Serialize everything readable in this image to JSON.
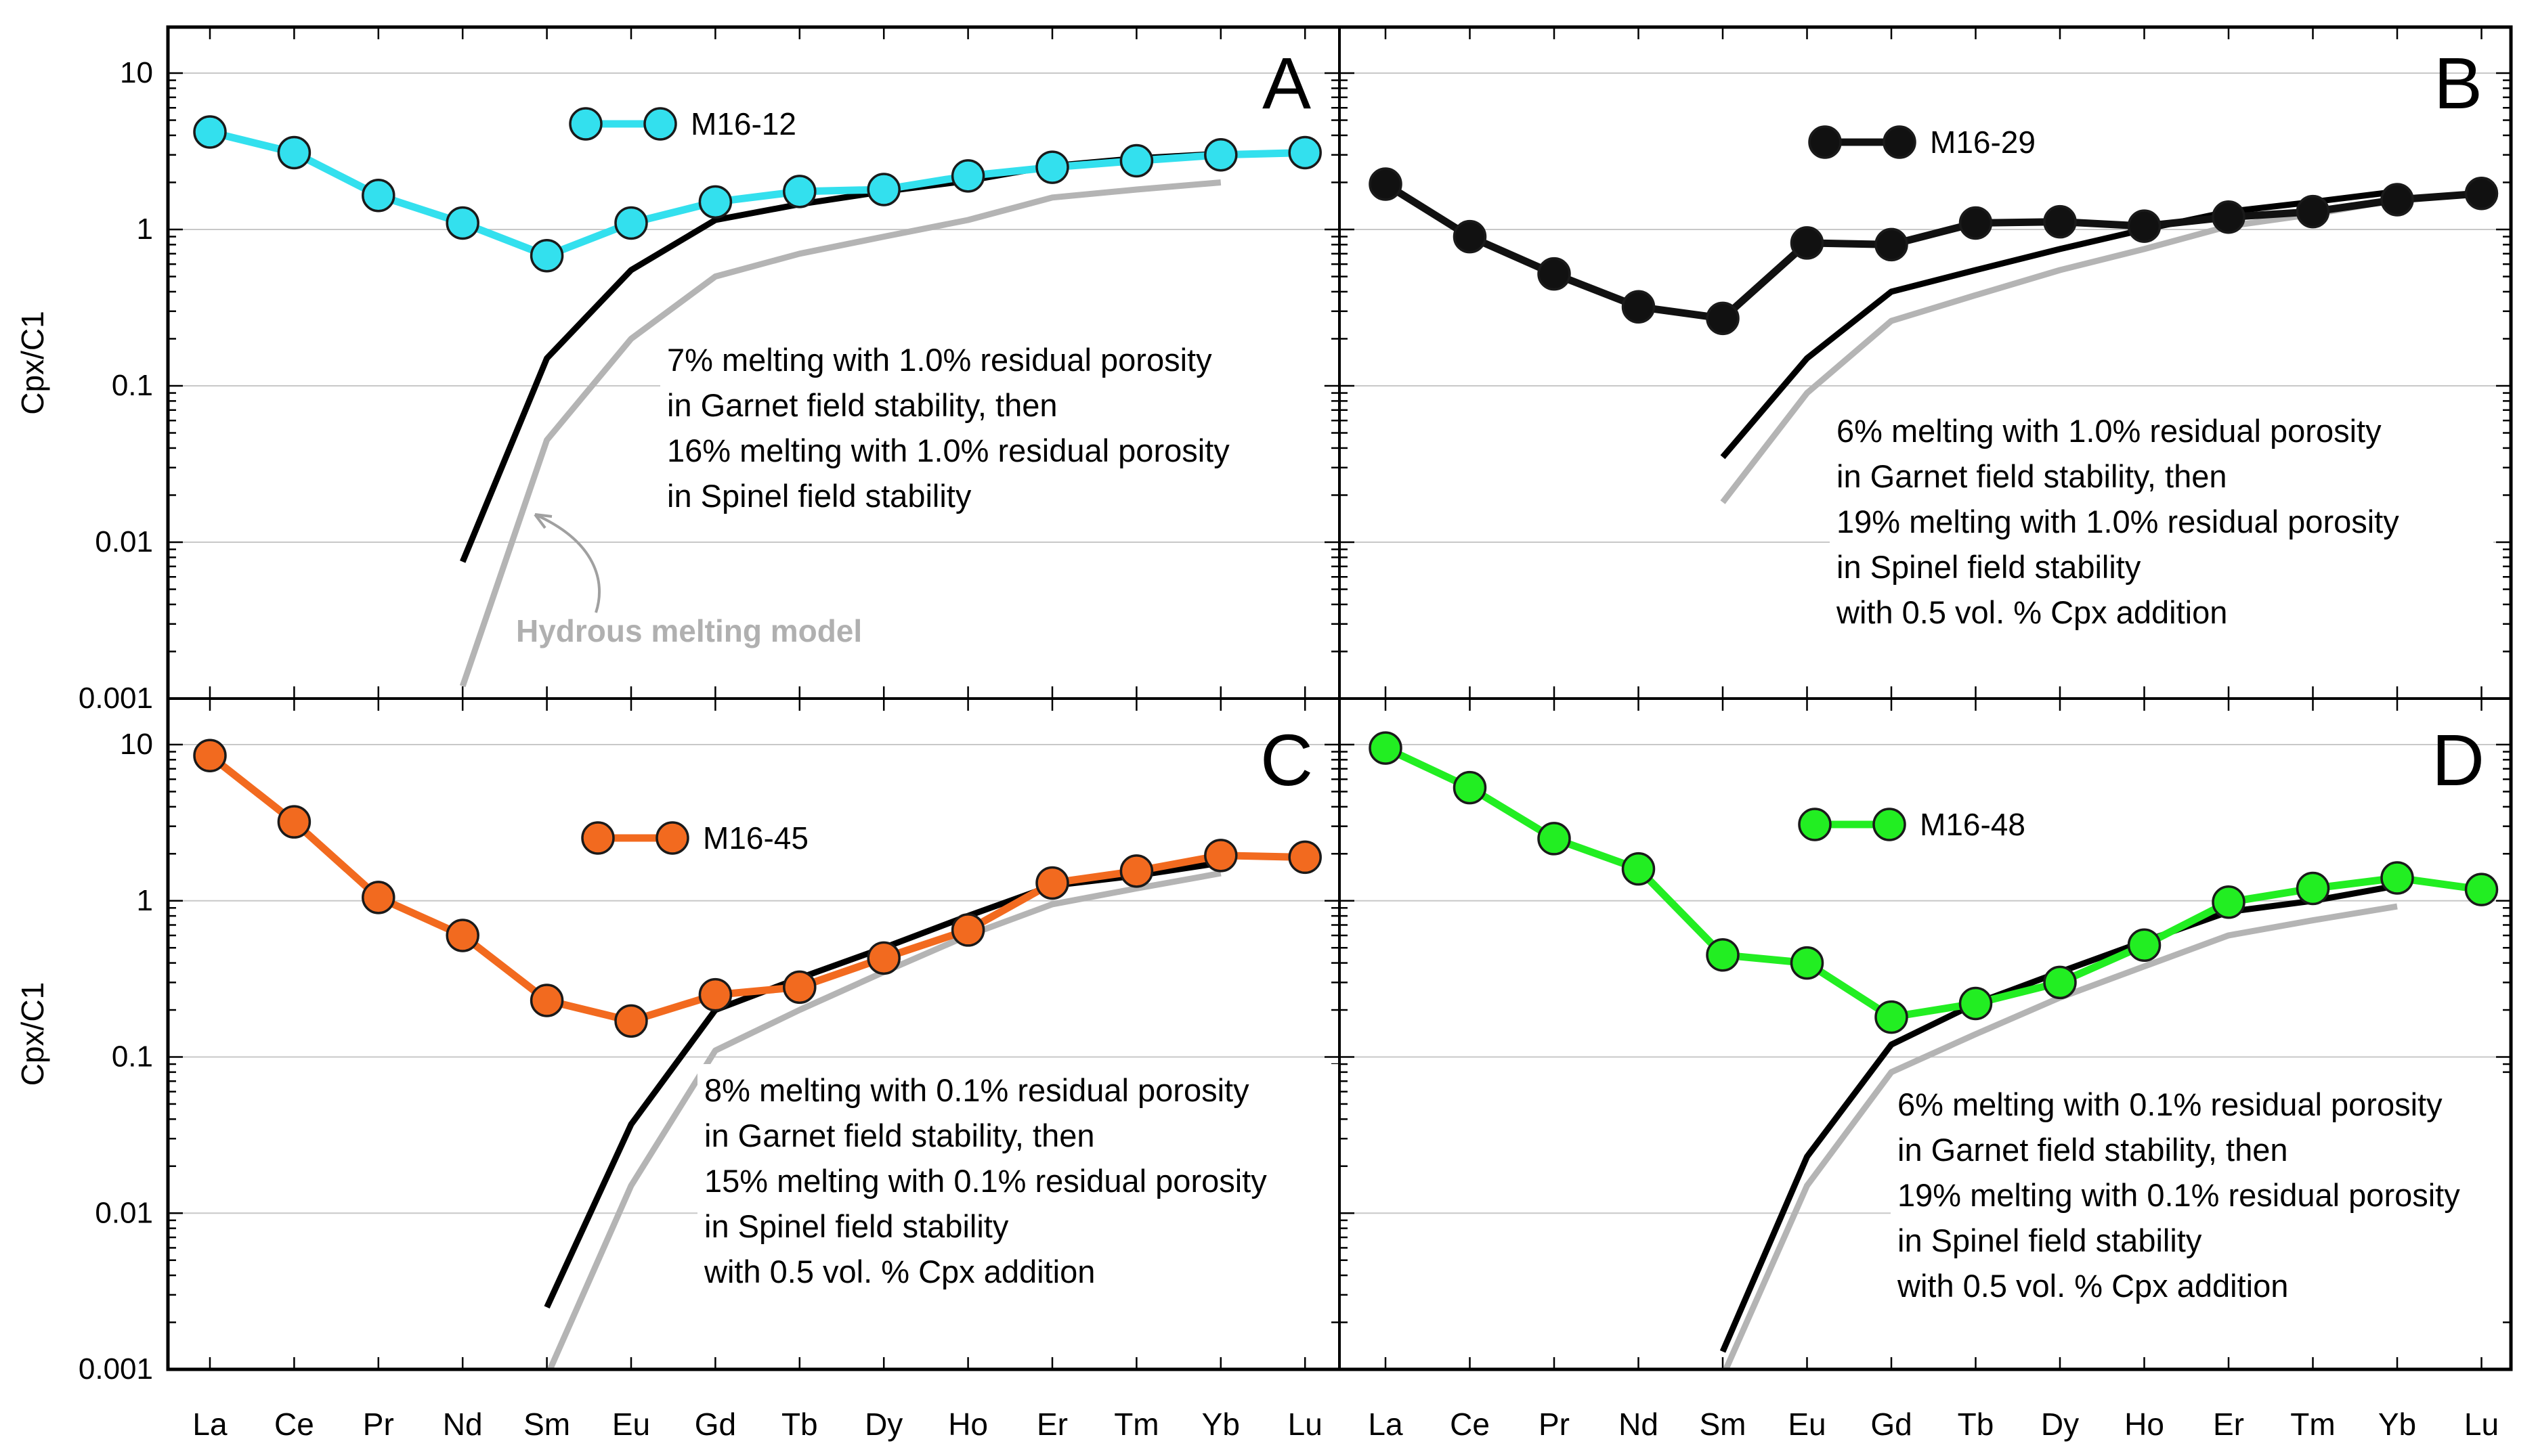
{
  "chart_data": [
    {
      "panel_label": "A",
      "type": "line",
      "title": "",
      "xlabel": "",
      "ylabel": "Cpx/C1",
      "yscale": "log",
      "ylim": [
        0.001,
        20
      ],
      "grid": true,
      "legend_position": "top-center",
      "categories": [
        "La",
        "Ce",
        "Pr",
        "Nd",
        "Sm",
        "Eu",
        "Gd",
        "Tb",
        "Dy",
        "Ho",
        "Er",
        "Tm",
        "Yb",
        "Lu"
      ],
      "series": [
        {
          "name": "M16-12",
          "kind": "sample",
          "color": "#33e0ee",
          "values": [
            4.2,
            3.1,
            1.65,
            1.1,
            0.68,
            1.1,
            1.5,
            1.75,
            1.8,
            2.2,
            2.5,
            2.75,
            3.0,
            3.1
          ]
        },
        {
          "name": "Melting model",
          "kind": "model",
          "color": "#000000",
          "values": [
            null,
            null,
            null,
            0.0075,
            0.15,
            0.55,
            1.15,
            1.45,
            1.75,
            2.05,
            2.55,
            2.85,
            3.05,
            null
          ]
        },
        {
          "name": "Hydrous melting model",
          "kind": "model",
          "color": "#b4b4b4",
          "values": [
            null,
            null,
            null,
            0.0012,
            0.045,
            0.2,
            0.5,
            0.7,
            0.9,
            1.15,
            1.6,
            1.8,
            2.0,
            null
          ]
        }
      ],
      "annotations": [
        "7% melting with 1.0% residual porosity",
        "in Garnet field stability, then",
        "16% melting with 1.0% residual porosity",
        "in Spinel field stability"
      ],
      "callout": "Hydrous melting model"
    },
    {
      "panel_label": "B",
      "type": "line",
      "title": "",
      "xlabel": "",
      "ylabel": "",
      "yscale": "log",
      "ylim": [
        0.001,
        20
      ],
      "grid": true,
      "legend_position": "top-center",
      "categories": [
        "La",
        "Ce",
        "Pr",
        "Nd",
        "Sm",
        "Eu",
        "Gd",
        "Tb",
        "Dy",
        "Ho",
        "Er",
        "Tm",
        "Yb",
        "Lu"
      ],
      "series": [
        {
          "name": "M16-29",
          "kind": "sample",
          "color": "#111111",
          "values": [
            1.95,
            0.9,
            0.52,
            0.32,
            0.27,
            0.82,
            0.8,
            1.1,
            1.12,
            1.05,
            1.2,
            1.3,
            1.55,
            1.7
          ]
        },
        {
          "name": "Melting model",
          "kind": "model",
          "color": "#000000",
          "values": [
            null,
            null,
            null,
            null,
            0.035,
            0.15,
            0.4,
            0.55,
            0.75,
            1.0,
            1.3,
            1.5,
            1.75,
            null
          ]
        },
        {
          "name": "Hydrous melting model",
          "kind": "model",
          "color": "#b4b4b4",
          "values": [
            null,
            null,
            null,
            null,
            0.018,
            0.09,
            0.26,
            0.38,
            0.55,
            0.75,
            1.05,
            1.25,
            1.55,
            null
          ]
        }
      ],
      "annotations": [
        "6% melting with 1.0% residual porosity",
        "in Garnet field stability, then",
        "19% melting with 1.0% residual porosity",
        "in Spinel field stability",
        "with 0.5 vol. % Cpx addition"
      ]
    },
    {
      "panel_label": "C",
      "type": "line",
      "title": "",
      "xlabel": "",
      "ylabel": "Cpx/C1",
      "yscale": "log",
      "ylim": [
        0.001,
        20
      ],
      "grid": true,
      "legend_position": "top-center",
      "categories": [
        "La",
        "Ce",
        "Pr",
        "Nd",
        "Sm",
        "Eu",
        "Gd",
        "Tb",
        "Dy",
        "Ho",
        "Er",
        "Tm",
        "Yb",
        "Lu"
      ],
      "series": [
        {
          "name": "M16-45",
          "kind": "sample",
          "color": "#f26a1f",
          "values": [
            8.5,
            3.2,
            1.05,
            0.6,
            0.23,
            0.17,
            0.25,
            0.28,
            0.43,
            0.65,
            1.3,
            1.55,
            1.95,
            1.9
          ]
        },
        {
          "name": "Melting model",
          "kind": "model",
          "color": "#000000",
          "values": [
            null,
            null,
            null,
            null,
            0.0025,
            0.037,
            0.2,
            0.32,
            0.5,
            0.8,
            1.25,
            1.45,
            1.75,
            null
          ]
        },
        {
          "name": "Hydrous melting model",
          "kind": "model",
          "color": "#b4b4b4",
          "values": [
            null,
            null,
            null,
            null,
            0.0009,
            0.015,
            0.11,
            0.2,
            0.35,
            0.6,
            0.95,
            1.2,
            1.5,
            null
          ]
        }
      ],
      "annotations": [
        "8% melting with 0.1% residual porosity",
        "in Garnet field stability, then",
        "15% melting with 0.1% residual porosity",
        "in Spinel field stability",
        "with 0.5 vol. % Cpx addition"
      ]
    },
    {
      "panel_label": "D",
      "type": "line",
      "title": "",
      "xlabel": "",
      "ylabel": "",
      "yscale": "log",
      "ylim": [
        0.001,
        20
      ],
      "grid": true,
      "legend_position": "top-center",
      "categories": [
        "La",
        "Ce",
        "Pr",
        "Nd",
        "Sm",
        "Eu",
        "Gd",
        "Tb",
        "Dy",
        "Ho",
        "Er",
        "Tm",
        "Yb",
        "Lu"
      ],
      "series": [
        {
          "name": "M16-48",
          "kind": "sample",
          "color": "#22ee22",
          "values": [
            9.5,
            5.3,
            2.5,
            1.6,
            0.45,
            0.4,
            0.18,
            0.22,
            0.3,
            0.52,
            0.98,
            1.2,
            1.4,
            1.18
          ]
        },
        {
          "name": "Melting model",
          "kind": "model",
          "color": "#000000",
          "values": [
            null,
            null,
            null,
            null,
            0.0013,
            0.023,
            0.12,
            0.22,
            0.35,
            0.55,
            0.85,
            1.0,
            1.25,
            null
          ]
        },
        {
          "name": "Hydrous melting model",
          "kind": "model",
          "color": "#b4b4b4",
          "values": [
            null,
            null,
            null,
            null,
            0.0009,
            0.015,
            0.08,
            0.14,
            0.24,
            0.38,
            0.6,
            0.75,
            0.92,
            null
          ]
        }
      ],
      "annotations": [
        "6% melting with 0.1% residual porosity",
        "in Garnet field stability, then",
        "19% melting with 0.1% residual porosity",
        "in Spinel field stability",
        "with 0.5 vol. % Cpx addition"
      ]
    }
  ],
  "y_tick_labels": [
    "10",
    "1",
    "0.1",
    "0.01",
    "0.001"
  ],
  "y_tick_values": [
    10,
    1,
    0.1,
    0.01,
    0.001
  ]
}
